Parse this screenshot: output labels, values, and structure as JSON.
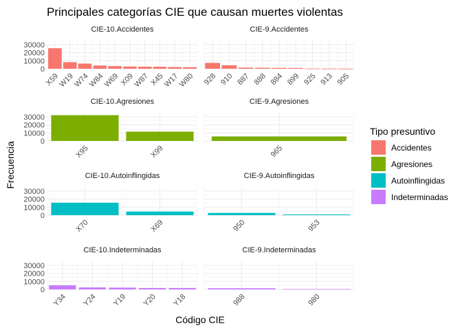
{
  "chart_data": {
    "type": "bar",
    "title": "Principales categorías CIE que causan muertes violentas",
    "xlabel": "Código CIE",
    "ylabel": "Frecuencia",
    "ylim": [
      0,
      35000
    ],
    "yticks": [
      0,
      10000,
      20000,
      30000
    ],
    "ytick_labels": [
      "0",
      "10000",
      "20000",
      "30000"
    ],
    "legend": {
      "title": "Tipo presuntivo",
      "placement": "right",
      "entries": [
        {
          "label": "Accidentes",
          "color": "#F8766D"
        },
        {
          "label": "Agresiones",
          "color": "#7CAE00"
        },
        {
          "label": "Autoinflingidas",
          "color": "#00BFC4"
        },
        {
          "label": "Indeterminadas",
          "color": "#C77CFF"
        }
      ]
    },
    "panels": [
      {
        "label": "CIE-10.Accidentes",
        "group": 0,
        "col": 0,
        "row": 0,
        "categories": [
          "X59",
          "W19",
          "W74",
          "W84",
          "W69",
          "X09",
          "W87",
          "X45",
          "W17",
          "W80"
        ],
        "values": [
          25500,
          8200,
          6400,
          4000,
          3300,
          2800,
          2600,
          2500,
          2100,
          1900
        ]
      },
      {
        "label": "CIE-9.Accidentes",
        "group": 0,
        "col": 1,
        "row": 0,
        "categories": [
          "928",
          "910",
          "887",
          "888",
          "884",
          "899",
          "925",
          "913",
          "905"
        ],
        "values": [
          7300,
          4300,
          1400,
          1200,
          1100,
          1000,
          200,
          150,
          100
        ]
      },
      {
        "label": "CIE-10.Agresiones",
        "group": 1,
        "col": 0,
        "row": 1,
        "categories": [
          "X95",
          "X99"
        ],
        "values": [
          32000,
          11500
        ]
      },
      {
        "label": "CIE-9.Agresiones",
        "group": 1,
        "col": 1,
        "row": 1,
        "categories": [
          "965"
        ],
        "values": [
          5600
        ]
      },
      {
        "label": "CIE-10.Autoinflingidas",
        "group": 2,
        "col": 0,
        "row": 2,
        "categories": [
          "X70",
          "X69"
        ],
        "values": [
          15500,
          4500
        ]
      },
      {
        "label": "CIE-9.Autoinflingidas",
        "group": 2,
        "col": 1,
        "row": 2,
        "categories": [
          "950",
          "953"
        ],
        "values": [
          2800,
          900
        ]
      },
      {
        "label": "CIE-10.Indeterminadas",
        "group": 3,
        "col": 0,
        "row": 3,
        "categories": [
          "Y34",
          "Y24",
          "Y19",
          "Y20",
          "Y18"
        ],
        "values": [
          5200,
          2500,
          2300,
          1800,
          1800
        ]
      },
      {
        "label": "CIE-9.Indeterminadas",
        "group": 3,
        "col": 1,
        "row": 3,
        "categories": [
          "988",
          "980"
        ],
        "values": [
          1500,
          500
        ]
      }
    ]
  }
}
